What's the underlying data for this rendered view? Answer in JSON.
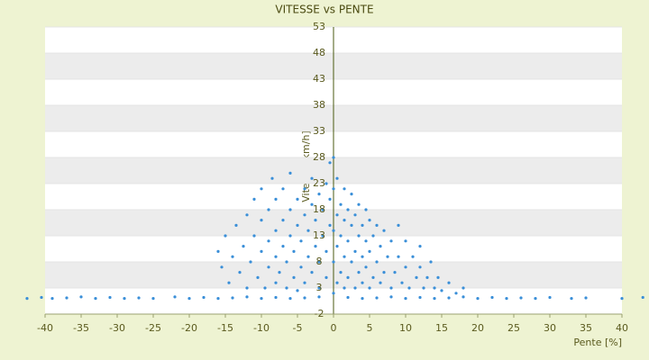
{
  "chart_data": {
    "type": "scatter",
    "title": "VITESSE vs PENTE",
    "x_label": "Pente [%]",
    "y_label": "Vitesse [km/h]",
    "color": "#3a8fd8",
    "xlim": [
      -40,
      40
    ],
    "xticks": [
      -40,
      -35,
      -30,
      -25,
      -20,
      -15,
      -10,
      -5,
      0,
      5,
      10,
      15,
      20,
      25,
      30,
      35,
      40
    ],
    "ylim": [
      -2,
      53
    ],
    "yticks": [
      -2,
      3,
      8,
      13,
      18,
      23,
      28,
      33,
      38,
      43,
      48,
      53
    ],
    "x": [
      -42.5,
      -40.5,
      -39,
      -37,
      -35,
      -33,
      -31,
      -29,
      -27,
      -25,
      -22,
      -20,
      -18,
      -16,
      -14,
      -12,
      -10,
      -8,
      -6,
      -4,
      -2,
      2,
      4,
      6,
      8,
      10,
      12,
      14,
      16,
      18,
      20,
      22,
      24,
      26,
      28,
      30,
      33,
      35,
      40,
      42.9,
      -16,
      -15.5,
      -15,
      -14.5,
      -14,
      -13.5,
      -13,
      -12.5,
      -12,
      -12,
      -11.5,
      -11,
      -11,
      -10.5,
      -10,
      -10,
      -10,
      -9.5,
      -9,
      -9,
      -9,
      -8.5,
      -8,
      -8,
      -8,
      -8,
      -7.5,
      -7,
      -7,
      -7,
      -6.5,
      -6.5,
      -6,
      -6,
      -6,
      -5.5,
      -5.5,
      -5,
      -5,
      -5,
      -4.5,
      -4.5,
      -4,
      -4,
      -4,
      -3.5,
      -3.5,
      -3,
      -3,
      -3,
      -2.5,
      -2.5,
      -2,
      -2,
      -2,
      -1.5,
      -1.5,
      -1,
      -1,
      -1,
      -0.5,
      -0.5,
      -0.5,
      0,
      0,
      0,
      0,
      0,
      0.5,
      0.5,
      0.5,
      0.5,
      1,
      1,
      1,
      1.5,
      1.5,
      1.5,
      1.5,
      2,
      2,
      2,
      2.5,
      2.5,
      2.5,
      3,
      3,
      3,
      3.5,
      3.5,
      3.5,
      4,
      4,
      4,
      4.5,
      4.5,
      4.5,
      5,
      5,
      5,
      5.5,
      5.5,
      6,
      6,
      6.5,
      6.5,
      7,
      7,
      7.5,
      8,
      8,
      8.5,
      9,
      9,
      9.5,
      10,
      10,
      10.5,
      11,
      11.5,
      12,
      12,
      12.5,
      13,
      13.5,
      14,
      14.5,
      15,
      16,
      17,
      18
    ],
    "values": [
      1,
      1.2,
      1,
      1.1,
      1.3,
      1,
      1.2,
      1,
      1.1,
      1,
      1.3,
      1,
      1.2,
      1,
      1.1,
      1.3,
      1,
      1.2,
      1,
      1.1,
      1.3,
      1.2,
      1,
      1.1,
      1.3,
      1,
      1.2,
      1,
      1.1,
      1.3,
      1,
      1.2,
      1,
      1.1,
      1,
      1.2,
      1,
      1.1,
      1,
      1.2,
      10,
      7,
      13,
      4,
      9,
      15,
      6,
      11,
      3,
      17,
      8,
      13,
      20,
      5,
      10,
      16,
      22,
      3,
      7,
      12,
      18,
      24,
      4,
      9,
      14,
      20,
      6,
      11,
      16,
      22,
      3,
      8,
      13,
      18,
      25,
      5,
      10,
      15,
      20,
      2.5,
      7,
      12,
      17,
      22,
      4,
      9,
      14,
      19,
      24,
      6,
      11,
      16,
      21,
      3,
      8,
      13,
      18,
      23,
      5,
      10,
      15,
      20,
      27,
      2,
      8,
      14,
      22,
      28,
      4,
      11,
      17,
      24,
      6,
      13,
      19,
      3,
      9,
      16,
      22,
      5,
      12,
      18,
      8,
      15,
      21,
      3,
      10,
      17,
      6,
      13,
      19,
      4,
      9,
      15,
      7,
      12,
      18,
      3,
      10,
      16,
      5,
      13,
      8,
      15,
      4,
      11,
      6,
      14,
      9,
      3,
      12,
      6,
      9,
      15,
      4,
      7,
      12,
      3,
      9,
      5,
      7,
      11,
      3,
      5,
      8,
      3,
      5,
      2.5,
      4,
      2,
      3
    ]
  }
}
